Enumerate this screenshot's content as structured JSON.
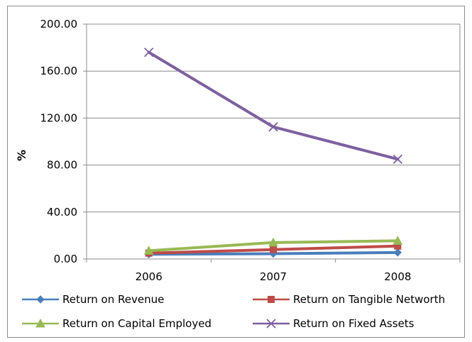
{
  "chart_data": {
    "type": "line",
    "title": "",
    "xlabel": "",
    "ylabel": "%",
    "categories": [
      "2006",
      "2007",
      "2008"
    ],
    "ylim": [
      0,
      200
    ],
    "yticks": [
      "0.00",
      "40.00",
      "80.00",
      "120.00",
      "160.00",
      "200.00"
    ],
    "grid": true,
    "legend_position": "bottom",
    "series": [
      {
        "name": "Return on Revenue",
        "values": [
          4.0,
          4.5,
          5.5
        ],
        "color": "#4a7ebb",
        "marker": "diamond"
      },
      {
        "name": "Return on Tangible Networth",
        "values": [
          5.0,
          8.0,
          11.0
        ],
        "color": "#be4b48",
        "marker": "square"
      },
      {
        "name": "Return on Capital Employed",
        "values": [
          7.0,
          14.0,
          15.5
        ],
        "color": "#98b954",
        "marker": "triangle"
      },
      {
        "name": "Return on Fixed Assets",
        "values": [
          176.0,
          112.5,
          85.0
        ],
        "color": "#7d60a0",
        "marker": "x"
      }
    ]
  }
}
